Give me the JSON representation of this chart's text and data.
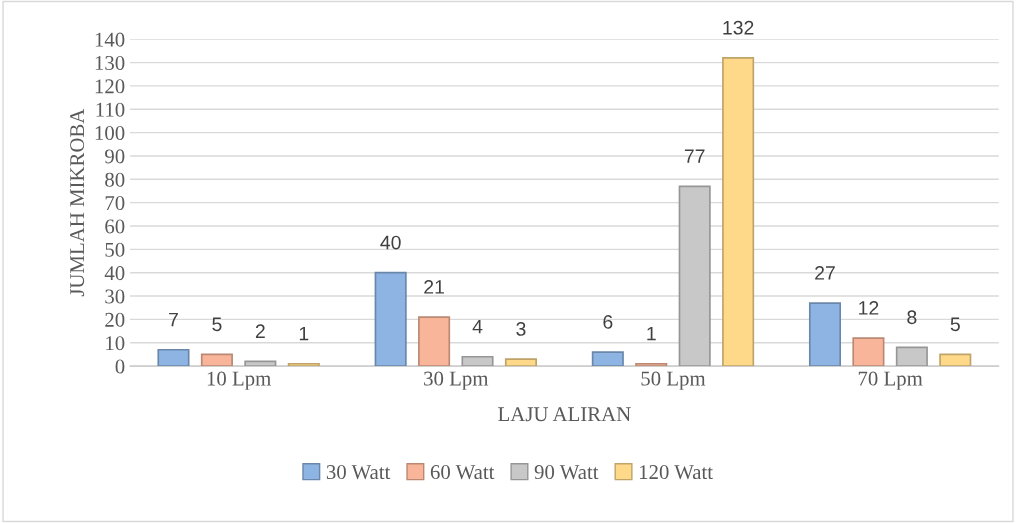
{
  "chart_data": {
    "type": "bar",
    "xlabel": "LAJU ALIRAN",
    "ylabel": "JUMLAH MIKROBA",
    "categories": [
      "10 Lpm",
      "30 Lpm",
      "50 Lpm",
      "70 Lpm"
    ],
    "series": [
      {
        "name": "30 Watt",
        "color": "#8db4e2",
        "values": [
          7,
          40,
          6,
          27
        ]
      },
      {
        "name": "60 Watt",
        "color": "#f8b59a",
        "values": [
          5,
          21,
          1,
          12
        ]
      },
      {
        "name": "90 Watt",
        "color": "#c8c8c8",
        "values": [
          2,
          4,
          77,
          8
        ]
      },
      {
        "name": "120 Watt",
        "color": "#ffd98a",
        "values": [
          1,
          3,
          132,
          5
        ]
      }
    ],
    "ylim": [
      0,
      140
    ],
    "yticks": [
      0,
      10,
      20,
      30,
      40,
      50,
      60,
      70,
      80,
      90,
      100,
      110,
      120,
      130,
      140
    ],
    "grid": "y",
    "legend": "bottom",
    "data_labels": true
  }
}
